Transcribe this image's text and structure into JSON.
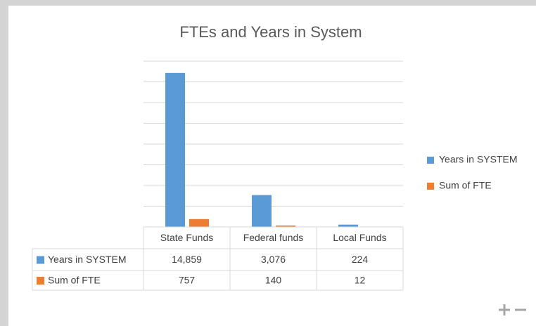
{
  "chart_data": {
    "type": "bar",
    "title": "FTEs and Years in System",
    "categories": [
      "State Funds",
      "Federal funds",
      "Local Funds"
    ],
    "series": [
      {
        "name": "Years in SYSTEM",
        "color": "#5b9bd5",
        "values": [
          14859,
          3076,
          224
        ],
        "value_labels": [
          "14,859",
          "3,076",
          "224"
        ]
      },
      {
        "name": "Sum of FTE",
        "color": "#ed7d31",
        "values": [
          757,
          140,
          12
        ],
        "value_labels": [
          "757",
          "140",
          "12"
        ]
      }
    ],
    "ylim": [
      0,
      16000
    ],
    "yticks": [
      0,
      2000,
      4000,
      6000,
      8000,
      10000,
      12000,
      14000,
      16000
    ],
    "grid": true,
    "legend": "right",
    "data_table": true
  }
}
